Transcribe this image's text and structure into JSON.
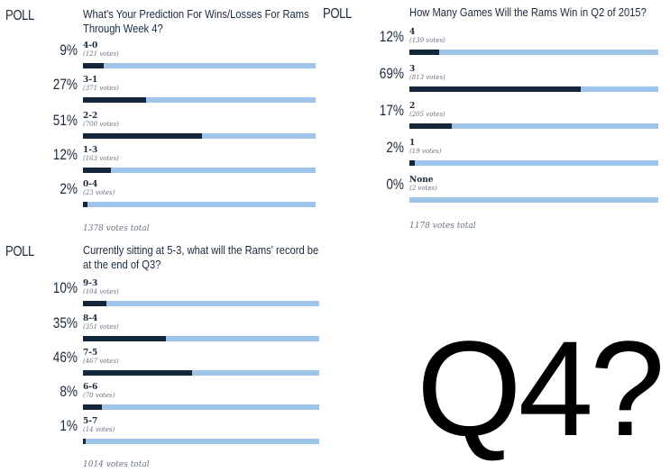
{
  "polls": [
    {
      "label": "POLL",
      "question": "What's Your Prediction For Wins/Losses For Rams Through Week 4?",
      "options": [
        {
          "pct": "9%",
          "label": "4-0",
          "votes": "(121 votes)",
          "fraction": 0.09
        },
        {
          "pct": "27%",
          "label": "3-1",
          "votes": "(371 votes)",
          "fraction": 0.27
        },
        {
          "pct": "51%",
          "label": "2-2",
          "votes": "(700 votes)",
          "fraction": 0.51
        },
        {
          "pct": "12%",
          "label": "1-3",
          "votes": "(163 votes)",
          "fraction": 0.12
        },
        {
          "pct": "2%",
          "label": "0-4",
          "votes": "(23 votes)",
          "fraction": 0.02
        }
      ],
      "total": "1378 votes total"
    },
    {
      "label": "POLL",
      "question": "How Many Games Will the Rams Win in Q2 of 2015?",
      "options": [
        {
          "pct": "12%",
          "label": "4",
          "votes": "(139 votes)",
          "fraction": 0.12
        },
        {
          "pct": "69%",
          "label": "3",
          "votes": "(813 votes)",
          "fraction": 0.69
        },
        {
          "pct": "17%",
          "label": "2",
          "votes": "(205 votes)",
          "fraction": 0.17
        },
        {
          "pct": "2%",
          "label": "1",
          "votes": "(19 votes)",
          "fraction": 0.02
        },
        {
          "pct": "0%",
          "label": "None",
          "votes": "(2 votes)",
          "fraction": 0.0
        }
      ],
      "total": "1178 votes total"
    },
    {
      "label": "POLL",
      "question": "Currently sitting at 5-3, what will the Rams' record be at the end of Q3?",
      "options": [
        {
          "pct": "10%",
          "label": "9-3",
          "votes": "(104 votes)",
          "fraction": 0.1
        },
        {
          "pct": "35%",
          "label": "8-4",
          "votes": "(351 votes)",
          "fraction": 0.35
        },
        {
          "pct": "46%",
          "label": "7-5",
          "votes": "(467 votes)",
          "fraction": 0.46
        },
        {
          "pct": "8%",
          "label": "6-6",
          "votes": "(78 votes)",
          "fraction": 0.08
        },
        {
          "pct": "1%",
          "label": "5-7",
          "votes": "(14 votes)",
          "fraction": 0.01
        }
      ],
      "total": "1014 votes total"
    }
  ],
  "big_text": "Q4?",
  "colors": {
    "bar_track": "#9fc6ea",
    "bar_fill": "#14263a",
    "text": "#1a2a3a"
  }
}
